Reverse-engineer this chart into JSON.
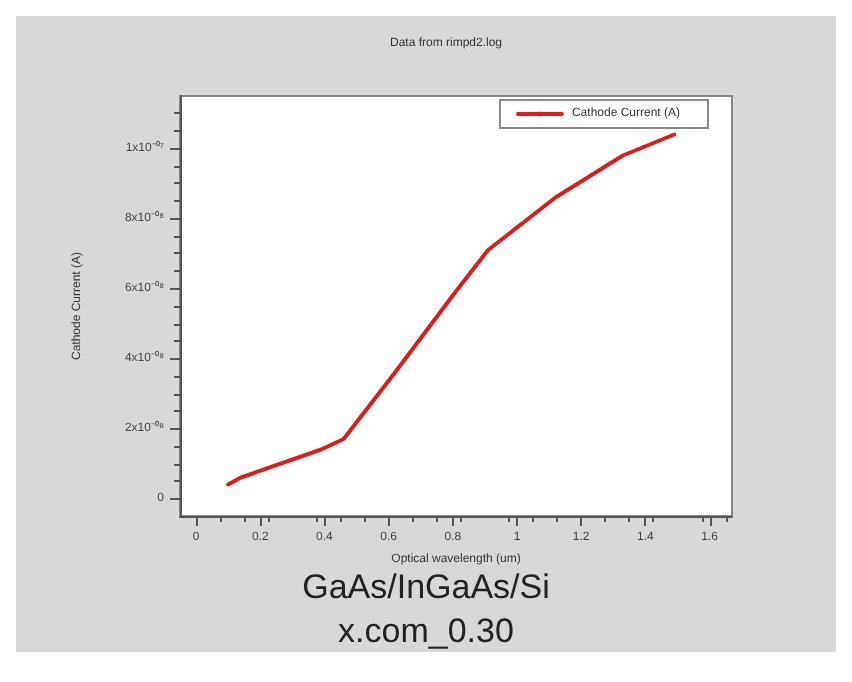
{
  "chart_data": {
    "type": "line",
    "subtitle": "Data from rimpd2.log",
    "xlabel": "Optical wavelength (um)",
    "ylabel": "Cathode Current (A)",
    "x": [
      0.1,
      0.14,
      0.39,
      0.46,
      0.62,
      0.8,
      0.91,
      1.12,
      1.33,
      1.49
    ],
    "series": [
      {
        "name": "Cathode Current (A)",
        "color": "#d42020",
        "values": [
          4e-09,
          6e-09,
          1.4e-08,
          1.7e-08,
          3.6e-08,
          5.8e-08,
          7.1e-08,
          8.6e-08,
          9.8e-08,
          1.04e-07
        ]
      }
    ],
    "xlim": [
      -0.05,
      1.67
    ],
    "xticks": [
      0,
      0.2,
      0.4,
      0.6,
      0.8,
      1,
      1.2,
      1.4,
      1.6
    ],
    "ylim": [
      -5e-09,
      1.15e-07
    ],
    "yticks": [
      {
        "value": 0,
        "label": "0"
      },
      {
        "value": 2e-08,
        "label": "2x10⁻⁰⁸"
      },
      {
        "value": 4e-08,
        "label": "4x10⁻⁰⁸"
      },
      {
        "value": 6e-08,
        "label": "6x10⁻⁰⁸"
      },
      {
        "value": 8e-08,
        "label": "8x10⁻⁰⁸"
      },
      {
        "value": 1e-07,
        "label": "1x10⁻⁰⁷"
      }
    ],
    "grid": false,
    "legend": "top right",
    "marker": "none",
    "line_style": "solid",
    "annotations": [
      "GaAs/InGaAs/Si",
      "x.com_0.30"
    ]
  }
}
